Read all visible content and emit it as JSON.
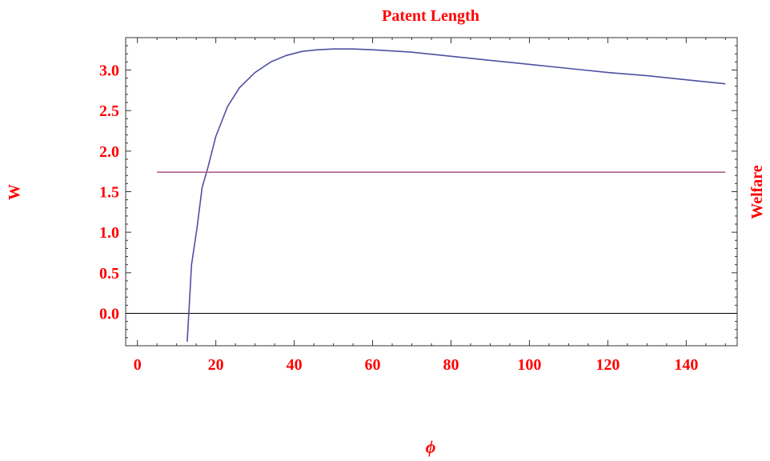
{
  "chart_data": {
    "type": "line",
    "title": "Patent Length",
    "xlabel": "ϕ",
    "ylabel": "W",
    "right_label": "Welfare",
    "xlim": [
      -3,
      153
    ],
    "ylim": [
      -0.4,
      3.4
    ],
    "xticks": [
      {
        "value": 0,
        "label": "0"
      },
      {
        "value": 20,
        "label": "20"
      },
      {
        "value": 40,
        "label": "40"
      },
      {
        "value": 60,
        "label": "60"
      },
      {
        "value": 80,
        "label": "80"
      },
      {
        "value": 100,
        "label": "100"
      },
      {
        "value": 120,
        "label": "120"
      },
      {
        "value": 140,
        "label": "140"
      }
    ],
    "yticks": [
      {
        "value": 0.0,
        "label": "0.0"
      },
      {
        "value": 0.5,
        "label": "0.5"
      },
      {
        "value": 1.0,
        "label": "1.0"
      },
      {
        "value": 1.5,
        "label": "1.5"
      },
      {
        "value": 2.0,
        "label": "2.0"
      },
      {
        "value": 2.5,
        "label": "2.5"
      },
      {
        "value": 3.0,
        "label": "3.0"
      }
    ],
    "series": [
      {
        "color": "#4f4fa3",
        "points": [
          [
            12.7,
            -0.35
          ],
          [
            13.8,
            0.6
          ],
          [
            15.2,
            1.05
          ],
          [
            16.5,
            1.55
          ],
          [
            18,
            1.8
          ],
          [
            20,
            2.18
          ],
          [
            23,
            2.55
          ],
          [
            26,
            2.78
          ],
          [
            30,
            2.97
          ],
          [
            34,
            3.1
          ],
          [
            38,
            3.18
          ],
          [
            42,
            3.23
          ],
          [
            46,
            3.25
          ],
          [
            50,
            3.26
          ],
          [
            55,
            3.26
          ],
          [
            60,
            3.25
          ],
          [
            70,
            3.22
          ],
          [
            80,
            3.17
          ],
          [
            90,
            3.12
          ],
          [
            100,
            3.07
          ],
          [
            110,
            3.02
          ],
          [
            120,
            2.97
          ],
          [
            130,
            2.93
          ],
          [
            140,
            2.88
          ],
          [
            150,
            2.83
          ]
        ]
      },
      {
        "color": "#b0608a",
        "points": [
          [
            5,
            1.74
          ],
          [
            150,
            1.74
          ]
        ]
      }
    ],
    "reference_line": {
      "y": 0,
      "color": "#000000"
    }
  }
}
